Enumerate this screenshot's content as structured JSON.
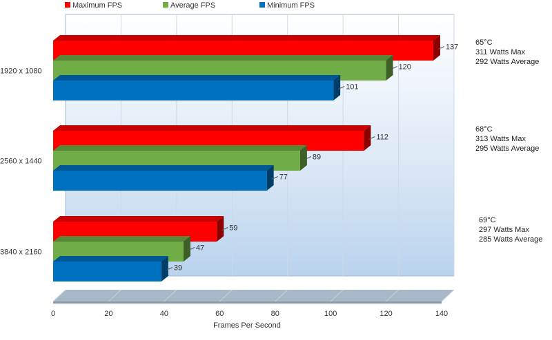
{
  "chart_data": {
    "type": "bar",
    "orientation": "horizontal",
    "categories": [
      "1920 x 1080",
      "2560 x 1440",
      "3840 x 2160"
    ],
    "series": [
      {
        "name": "Maximum FPS",
        "color": "#ff0000",
        "values": [
          137,
          112,
          59
        ]
      },
      {
        "name": "Average FPS",
        "color": "#70ad47",
        "values": [
          120,
          89,
          47
        ]
      },
      {
        "name": "Minimum FPS",
        "color": "#0070c0",
        "values": [
          101,
          77,
          39
        ]
      }
    ],
    "xlabel": "Frames Per Second",
    "ylabel": "",
    "xlim": [
      0,
      140
    ],
    "xticks": [
      0,
      20,
      40,
      60,
      80,
      100,
      120,
      140
    ],
    "grid": true,
    "legend_position": "top",
    "annotations": [
      {
        "category": "1920 x 1080",
        "lines": [
          "65°C",
          "311 Watts Max",
          "292 Watts Average"
        ]
      },
      {
        "category": "2560 x 1440",
        "lines": [
          "68°C",
          "313 Watts Max",
          "295 Watts Average"
        ]
      },
      {
        "category": "3840 x 2160",
        "lines": [
          "69°C",
          "297 Watts Max",
          "285 Watts Average"
        ]
      }
    ]
  }
}
